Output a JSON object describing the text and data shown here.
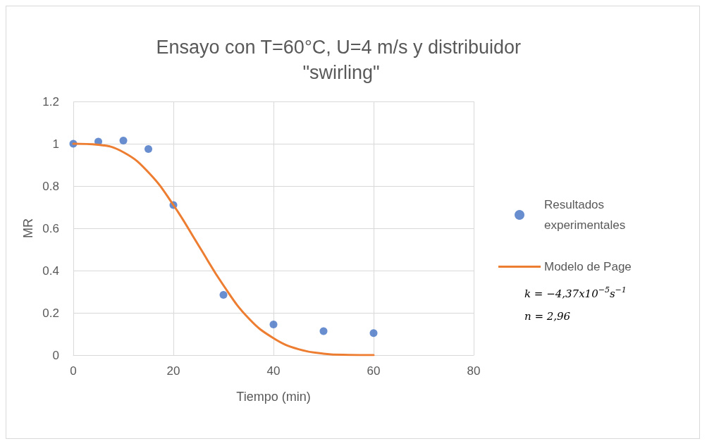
{
  "chart_data": {
    "type": "scatter",
    "title": "Ensayo con T=60°C, U=4 m/s y distribuidor \"swirling\"",
    "xlabel": "Tiempo (min)",
    "ylabel": "MR",
    "series": [
      {
        "name": "Resultados experimentales",
        "color": "#4472c4",
        "marker": "circle",
        "x": [
          0,
          5,
          10,
          15,
          20,
          30,
          40,
          50,
          60
        ],
        "values": [
          1.0,
          1.01,
          1.015,
          0.975,
          0.71,
          0.285,
          0.145,
          0.113,
          0.104
        ]
      },
      {
        "name": "Modelo de Page",
        "type": "line",
        "color": "#ed7d31",
        "marker": "none",
        "line_style": "solid",
        "x": [
          0,
          5,
          10,
          15,
          20,
          25,
          30,
          35,
          40,
          45,
          50,
          55,
          60
        ],
        "values": [
          1.0,
          0.995,
          0.96,
          0.865,
          0.71,
          0.52,
          0.33,
          0.175,
          0.08,
          0.028,
          0.007,
          0.001,
          0.0
        ]
      }
    ],
    "annotations": [
      "k = −4,37x10$^{−5}$s$^{−1}$",
      "n = 2,96"
    ],
    "xlim": [
      0,
      80
    ],
    "xticks": [
      0,
      20,
      40,
      60,
      80
    ],
    "ylim": [
      0,
      1.2
    ],
    "yticks": [
      0,
      0.2,
      0.4,
      0.6,
      0.8,
      1,
      1.2
    ],
    "grid": true,
    "legend": "right"
  }
}
